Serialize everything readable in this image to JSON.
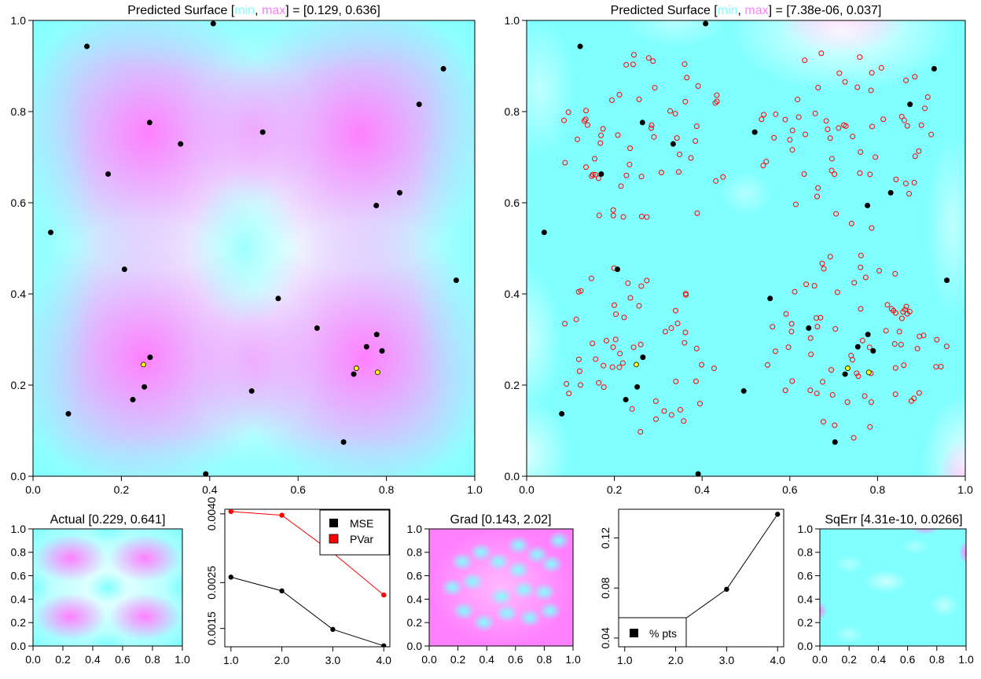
{
  "chart_data": [
    {
      "id": "main-left",
      "type": "heatmap",
      "title_prefix": "Predicted Surface [",
      "title_min_word": "min",
      "title_sep": ", ",
      "title_max_word": "max",
      "title_suffix": "] = [0.129, 0.636]",
      "range": [
        0.129,
        0.636
      ],
      "xlim": [
        0,
        1
      ],
      "ylim": [
        0,
        1
      ],
      "xticks": [
        "0.0",
        "0.2",
        "0.4",
        "0.6",
        "0.8",
        "1.0"
      ],
      "yticks": [
        "0.0",
        "0.2",
        "0.4",
        "0.6",
        "0.8",
        "1.0"
      ],
      "colors": {
        "low": "#80ffff",
        "high": "#ff80ff",
        "mid": "#ffffff"
      },
      "points": [
        [
          0.122,
          0.943
        ],
        [
          0.408,
          0.993
        ],
        [
          0.929,
          0.894
        ],
        [
          0.264,
          0.776
        ],
        [
          0.334,
          0.729
        ],
        [
          0.52,
          0.755
        ],
        [
          0.874,
          0.816
        ],
        [
          0.17,
          0.663
        ],
        [
          0.83,
          0.622
        ],
        [
          0.777,
          0.594
        ],
        [
          0.04,
          0.535
        ],
        [
          0.207,
          0.454
        ],
        [
          0.958,
          0.43
        ],
        [
          0.555,
          0.39
        ],
        [
          0.643,
          0.325
        ],
        [
          0.778,
          0.311
        ],
        [
          0.755,
          0.284
        ],
        [
          0.79,
          0.275
        ],
        [
          0.265,
          0.261
        ],
        [
          0.726,
          0.224
        ],
        [
          0.252,
          0.196
        ],
        [
          0.495,
          0.187
        ],
        [
          0.226,
          0.168
        ],
        [
          0.08,
          0.137
        ],
        [
          0.703,
          0.075
        ],
        [
          0.391,
          0.005
        ]
      ],
      "highlight_points": [
        [
          0.25,
          0.245
        ],
        [
          0.732,
          0.237
        ],
        [
          0.78,
          0.228
        ]
      ]
    },
    {
      "id": "main-right",
      "type": "heatmap",
      "title_prefix": "Predicted Surface [",
      "title_min_word": "min",
      "title_sep": ", ",
      "title_max_word": "max",
      "title_suffix": "] = [7.38e-06, 0.037]",
      "range": [
        7.4e-06,
        0.037
      ],
      "xlim": [
        0,
        1
      ],
      "ylim": [
        0,
        1
      ],
      "xticks": [
        "0.0",
        "0.2",
        "0.4",
        "0.6",
        "0.8",
        "1.0"
      ],
      "yticks": [
        "0.0",
        "0.2",
        "0.4",
        "0.6",
        "0.8",
        "1.0"
      ],
      "points": [
        [
          0.122,
          0.943
        ],
        [
          0.408,
          0.993
        ],
        [
          0.929,
          0.894
        ],
        [
          0.264,
          0.776
        ],
        [
          0.334,
          0.729
        ],
        [
          0.52,
          0.755
        ],
        [
          0.874,
          0.816
        ],
        [
          0.17,
          0.663
        ],
        [
          0.83,
          0.622
        ],
        [
          0.777,
          0.594
        ],
        [
          0.04,
          0.535
        ],
        [
          0.207,
          0.454
        ],
        [
          0.958,
          0.43
        ],
        [
          0.555,
          0.39
        ],
        [
          0.643,
          0.325
        ],
        [
          0.778,
          0.311
        ],
        [
          0.755,
          0.284
        ],
        [
          0.79,
          0.275
        ],
        [
          0.265,
          0.261
        ],
        [
          0.726,
          0.224
        ],
        [
          0.252,
          0.196
        ],
        [
          0.495,
          0.187
        ],
        [
          0.226,
          0.168
        ],
        [
          0.08,
          0.137
        ],
        [
          0.703,
          0.075
        ],
        [
          0.391,
          0.005
        ]
      ],
      "highlight_points": [
        [
          0.25,
          0.245
        ],
        [
          0.732,
          0.237
        ],
        [
          0.78,
          0.228
        ]
      ],
      "candidate_clusters": [
        {
          "center": [
            0.265,
            0.73
          ],
          "radius": 0.2,
          "count": 60
        },
        {
          "center": [
            0.74,
            0.74
          ],
          "radius": 0.21,
          "count": 62
        },
        {
          "center": [
            0.255,
            0.28
          ],
          "radius": 0.19,
          "count": 55
        },
        {
          "center": [
            0.75,
            0.28
          ],
          "radius": 0.21,
          "count": 75
        }
      ]
    },
    {
      "id": "actual",
      "type": "heatmap",
      "title": "Actual [0.229, 0.641]",
      "range": [
        0.229,
        0.641
      ],
      "xticks": [
        "0.0",
        "0.2",
        "0.4",
        "0.6",
        "0.8",
        "1.0"
      ],
      "yticks": [
        "0.0",
        "0.2",
        "0.4",
        "0.6",
        "0.8",
        "1.0"
      ]
    },
    {
      "id": "mse-pvar",
      "type": "line",
      "x": [
        1,
        2,
        3,
        4
      ],
      "xticks": [
        "1.0",
        "2.0",
        "3.0",
        "4.0"
      ],
      "yticks": [
        "0.0015",
        "0.0025",
        "0.0040"
      ],
      "ylim": [
        0.0011,
        0.0041
      ],
      "series": [
        {
          "name": "MSE",
          "color": "#000000",
          "values": [
            0.00262,
            0.00232,
            0.00148,
            0.00112
          ]
        },
        {
          "name": "PVar",
          "color": "#ff0000",
          "values": [
            0.00405,
            0.00397,
            0.00315,
            0.00223
          ]
        }
      ],
      "legend_position": "top-right"
    },
    {
      "id": "grad",
      "type": "heatmap",
      "title": "Grad [0.143, 2.02]",
      "range": [
        0.143,
        2.02
      ],
      "xticks": [
        "0.0",
        "0.2",
        "0.4",
        "0.6",
        "0.8",
        "1.0"
      ],
      "yticks": [
        "0.0",
        "0.2",
        "0.4",
        "0.6",
        "0.8",
        "1.0"
      ]
    },
    {
      "id": "pct-pts",
      "type": "line",
      "x": [
        1,
        2,
        3,
        4
      ],
      "xticks": [
        "1.0",
        "2.0",
        "3.0",
        "4.0"
      ],
      "yticks": [
        "0.04",
        "0.08",
        "0.12"
      ],
      "ylim": [
        0.033,
        0.143
      ],
      "series": [
        {
          "name": "% pts",
          "color": "#000000",
          "values": [
            0.03,
            0.05,
            0.079,
            0.139
          ]
        }
      ],
      "legend_position": "bottom-left"
    },
    {
      "id": "sqerr",
      "type": "heatmap",
      "title": "SqErr [4.31e-10, 0.0266]",
      "range": [
        4.31e-10,
        0.0266
      ],
      "xticks": [
        "0.0",
        "0.2",
        "0.4",
        "0.6",
        "0.8",
        "1.0"
      ],
      "yticks": [
        "0.0",
        "0.2",
        "0.4",
        "0.6",
        "0.8",
        "1.0"
      ]
    }
  ]
}
